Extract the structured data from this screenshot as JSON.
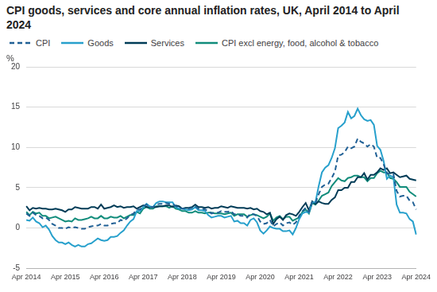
{
  "chart_data": {
    "type": "line",
    "title": "CPI goods, services and core annual inflation rates, UK, April 2014 to April 2024",
    "y_label": "%",
    "legend": "top-left",
    "grid": true,
    "ylim": [
      -5,
      20
    ],
    "yticks": [
      -5,
      0,
      5,
      10,
      15,
      20
    ],
    "categories": [
      "Apr 2014",
      null,
      null,
      null,
      null,
      null,
      null,
      null,
      null,
      null,
      null,
      null,
      "Apr 2015",
      null,
      null,
      null,
      null,
      null,
      null,
      null,
      null,
      null,
      null,
      null,
      "Apr 2016",
      null,
      null,
      null,
      null,
      null,
      null,
      null,
      null,
      null,
      null,
      null,
      "Apr 2017",
      null,
      null,
      null,
      null,
      null,
      null,
      null,
      null,
      null,
      null,
      null,
      "Apr 2018",
      null,
      null,
      null,
      null,
      null,
      null,
      null,
      null,
      null,
      null,
      null,
      "Apr 2019",
      null,
      null,
      null,
      null,
      null,
      null,
      null,
      null,
      null,
      null,
      null,
      "Apr 2020",
      null,
      null,
      null,
      null,
      null,
      null,
      null,
      null,
      null,
      null,
      null,
      "Apr 2021",
      null,
      null,
      null,
      null,
      null,
      null,
      null,
      null,
      null,
      null,
      null,
      "Apr 2022",
      null,
      null,
      null,
      null,
      null,
      null,
      null,
      null,
      null,
      null,
      null,
      "Apr 2023",
      null,
      null,
      null,
      null,
      null,
      null,
      null,
      null,
      null,
      null,
      null,
      "Apr 2024"
    ],
    "series": [
      {
        "name": "CPI",
        "color": "#206095",
        "line_style": "dashed",
        "values": [
          1.8,
          1.5,
          1.9,
          1.6,
          1.5,
          1.2,
          1.3,
          1.0,
          0.5,
          0.3,
          0.0,
          0.0,
          -0.1,
          0.1,
          0.0,
          0.1,
          0.0,
          -0.1,
          -0.1,
          0.1,
          0.2,
          0.3,
          0.3,
          0.5,
          0.3,
          0.3,
          0.5,
          0.6,
          0.6,
          1.0,
          0.9,
          1.2,
          1.6,
          1.8,
          2.3,
          2.3,
          2.7,
          2.9,
          2.6,
          2.6,
          2.9,
          3.0,
          3.0,
          3.1,
          3.0,
          3.0,
          2.7,
          2.5,
          2.4,
          2.4,
          2.4,
          2.5,
          2.7,
          2.4,
          2.4,
          2.3,
          2.1,
          1.8,
          1.9,
          1.9,
          2.1,
          2.0,
          2.0,
          2.1,
          1.7,
          1.7,
          1.5,
          1.5,
          1.3,
          1.8,
          1.7,
          1.5,
          0.8,
          0.5,
          0.6,
          1.0,
          0.2,
          0.5,
          0.7,
          0.3,
          0.6,
          0.7,
          0.4,
          0.7,
          1.5,
          2.1,
          2.5,
          2.0,
          3.2,
          3.1,
          4.2,
          5.1,
          5.4,
          5.5,
          6.2,
          7.0,
          9.0,
          9.1,
          9.4,
          10.1,
          9.9,
          10.1,
          11.1,
          10.7,
          10.5,
          10.1,
          10.4,
          10.1,
          8.7,
          8.7,
          7.9,
          6.8,
          6.7,
          6.7,
          4.6,
          3.9,
          4.0,
          4.0,
          3.4,
          3.2,
          2.3
        ]
      },
      {
        "name": "Goods",
        "color": "#27a0cc",
        "line_style": "solid",
        "values": [
          1.0,
          0.9,
          1.3,
          0.8,
          0.6,
          0.1,
          0.3,
          -0.2,
          -1.0,
          -1.5,
          -1.8,
          -1.8,
          -2.0,
          -1.8,
          -2.1,
          -2.3,
          -2.1,
          -2.3,
          -2.3,
          -2.0,
          -1.9,
          -1.6,
          -1.3,
          -1.5,
          -1.6,
          -1.5,
          -1.1,
          -1.1,
          -1.0,
          -0.6,
          -0.3,
          0.3,
          0.8,
          1.1,
          2.1,
          2.1,
          2.6,
          3.0,
          2.7,
          2.6,
          3.1,
          3.3,
          3.3,
          3.2,
          3.2,
          3.2,
          2.6,
          2.4,
          2.4,
          2.3,
          2.2,
          2.3,
          2.6,
          2.2,
          2.2,
          2.1,
          1.6,
          1.3,
          1.4,
          1.5,
          1.5,
          1.3,
          1.4,
          1.5,
          0.8,
          0.9,
          0.6,
          0.6,
          0.3,
          1.0,
          1.2,
          0.7,
          -0.3,
          -0.7,
          -0.3,
          0.2,
          0.0,
          -0.1,
          -0.1,
          -0.4,
          -0.4,
          -0.3,
          -0.8,
          0.0,
          1.1,
          1.8,
          2.0,
          1.9,
          3.2,
          3.2,
          5.2,
          6.9,
          7.5,
          7.8,
          8.7,
          9.9,
          12.4,
          12.7,
          13.1,
          14.4,
          13.6,
          13.9,
          14.8,
          14.0,
          13.5,
          13.3,
          13.4,
          12.8,
          10.2,
          9.7,
          8.3,
          6.1,
          6.5,
          6.3,
          2.9,
          1.9,
          1.9,
          1.8,
          1.1,
          0.8,
          -0.8
        ]
      },
      {
        "name": "Services",
        "color": "#003c57",
        "line_style": "solid",
        "values": [
          2.7,
          2.2,
          2.5,
          2.4,
          2.5,
          2.4,
          2.4,
          2.3,
          2.3,
          2.4,
          2.3,
          2.2,
          2.0,
          2.3,
          2.3,
          2.6,
          2.5,
          2.4,
          2.4,
          2.4,
          2.6,
          2.6,
          2.4,
          2.9,
          2.4,
          2.5,
          2.6,
          2.8,
          2.6,
          2.7,
          2.5,
          2.6,
          2.6,
          2.7,
          2.4,
          2.6,
          2.8,
          2.6,
          2.6,
          2.6,
          2.6,
          2.7,
          2.7,
          2.8,
          2.8,
          2.6,
          2.8,
          2.7,
          2.4,
          2.5,
          2.5,
          2.6,
          2.9,
          2.6,
          2.6,
          2.5,
          2.6,
          2.4,
          2.5,
          2.5,
          2.7,
          2.6,
          2.5,
          2.7,
          2.6,
          2.5,
          2.5,
          2.5,
          2.4,
          2.5,
          2.3,
          2.4,
          2.1,
          2.0,
          1.7,
          1.9,
          0.5,
          1.1,
          1.4,
          1.0,
          1.6,
          1.8,
          1.7,
          1.5,
          2.0,
          2.6,
          3.1,
          2.2,
          3.3,
          3.0,
          3.3,
          3.1,
          3.0,
          3.0,
          3.5,
          3.8,
          4.7,
          4.7,
          5.0,
          5.0,
          5.7,
          5.7,
          6.3,
          6.3,
          6.8,
          6.0,
          6.6,
          6.6,
          6.9,
          7.4,
          7.2,
          7.4,
          6.8,
          6.9,
          6.6,
          6.3,
          6.4,
          6.5,
          6.1,
          6.0,
          5.9
        ]
      },
      {
        "name": "CPI excl energy, food, alcohol & tobacco",
        "color": "#118c7b",
        "line_style": "solid",
        "values": [
          2.0,
          1.6,
          2.0,
          1.8,
          1.9,
          1.5,
          1.5,
          1.2,
          1.3,
          1.4,
          1.2,
          1.0,
          0.8,
          0.9,
          0.8,
          1.2,
          1.0,
          1.0,
          1.1,
          1.2,
          1.4,
          1.2,
          1.2,
          1.5,
          1.2,
          1.2,
          1.4,
          1.3,
          1.3,
          1.5,
          1.2,
          1.4,
          1.6,
          1.6,
          2.0,
          1.8,
          2.4,
          2.6,
          2.4,
          2.4,
          2.7,
          2.7,
          2.7,
          2.7,
          2.5,
          2.7,
          2.4,
          2.3,
          2.1,
          2.1,
          1.9,
          1.9,
          2.1,
          1.9,
          1.9,
          1.8,
          1.9,
          1.9,
          1.8,
          1.8,
          1.8,
          1.7,
          1.8,
          1.9,
          1.5,
          1.7,
          1.7,
          1.7,
          1.4,
          1.6,
          1.7,
          1.6,
          1.4,
          1.2,
          1.4,
          1.8,
          0.9,
          1.3,
          1.5,
          1.1,
          1.4,
          1.4,
          0.9,
          1.1,
          1.3,
          2.0,
          2.3,
          1.8,
          3.1,
          2.9,
          3.4,
          4.0,
          4.2,
          4.4,
          5.2,
          5.7,
          6.2,
          5.9,
          5.8,
          6.2,
          6.3,
          6.5,
          6.5,
          6.3,
          6.3,
          5.8,
          6.2,
          6.2,
          6.8,
          7.1,
          6.9,
          6.9,
          6.2,
          6.1,
          5.7,
          5.1,
          5.1,
          5.1,
          4.5,
          4.2,
          3.9
        ]
      }
    ]
  }
}
